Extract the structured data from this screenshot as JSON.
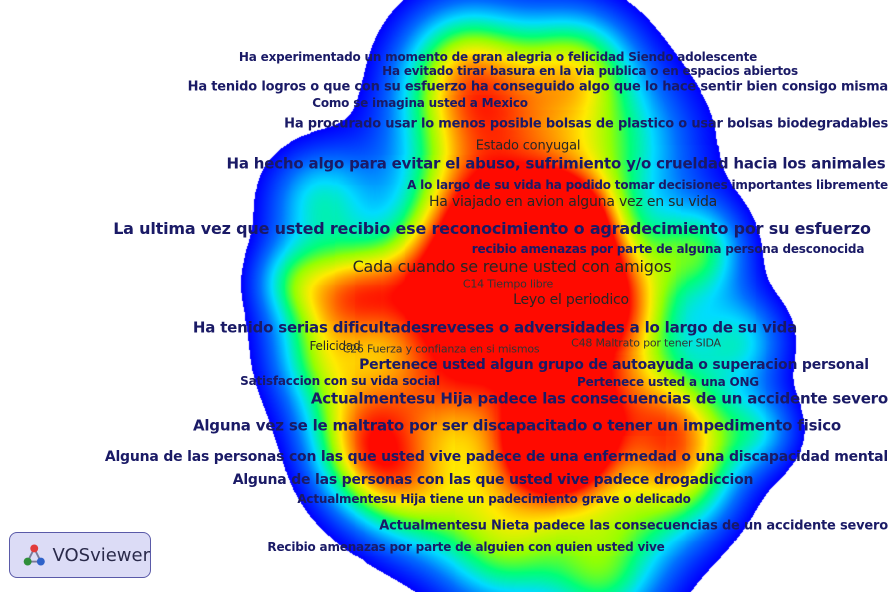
{
  "brand": {
    "label": "VOSviewer",
    "icon": "vosviewer-logo-icon"
  },
  "terms": [
    {
      "id": "t1",
      "text": "Ha experimentado un momento de gran alegria o felicidad Siendo adolescente",
      "weight": 0.35,
      "style": "dark"
    },
    {
      "id": "t2",
      "text": "Ha evitado tirar basura en la via publica o en espacios abiertos",
      "weight": 0.3,
      "style": "dark"
    },
    {
      "id": "t3",
      "text": "Ha tenido logros o que con su esfuerzo ha conseguido algo que lo hace sentir bien consigo misma",
      "weight": 0.4,
      "style": "dark"
    },
    {
      "id": "t4",
      "text": "Como se imagina usted a Mexico",
      "weight": 0.3,
      "style": "dark"
    },
    {
      "id": "t5",
      "text": "Ha procurado usar lo menos posible bolsas de plastico o usar bolsas biodegradables",
      "weight": 0.4,
      "style": "dark"
    },
    {
      "id": "t6",
      "text": "Estado conyugal",
      "weight": 0.45,
      "style": "mid"
    },
    {
      "id": "t7",
      "text": "Ha hecho algo para evitar el abuso, sufrimiento y/o crueldad hacia los animales",
      "weight": 0.65,
      "style": "dark"
    },
    {
      "id": "t8",
      "text": "A lo largo de su vida ha podido tomar decisiones importantes libremente",
      "weight": 0.35,
      "style": "dark"
    },
    {
      "id": "t9",
      "text": "Ha viajado en avion alguna vez en su vida",
      "weight": 0.6,
      "style": "mid"
    },
    {
      "id": "t10",
      "text": "La ultima vez que usted recibio ese reconocimiento o agradecimiento por su esfuerzo",
      "weight": 0.8,
      "style": "dark"
    },
    {
      "id": "t11",
      "text": "recibio amenazas por parte de alguna persona desconocida",
      "weight": 0.35,
      "style": "dark"
    },
    {
      "id": "t12",
      "text": "Cada cuando se reune usted con amigos",
      "weight": 0.75,
      "style": "mid"
    },
    {
      "id": "t13",
      "text": "C14 Tiempo libre",
      "weight": 0.2,
      "style": "small"
    },
    {
      "id": "t14",
      "text": "Leyo el periodico",
      "weight": 0.55,
      "style": "mid"
    },
    {
      "id": "t15",
      "text": "Ha tenido serias dificultadesreveses o adversidades a lo largo de su vida",
      "weight": 0.7,
      "style": "dark"
    },
    {
      "id": "t16",
      "text": "Felicidad",
      "weight": 0.3,
      "style": "mid"
    },
    {
      "id": "t17",
      "text": "C26 Fuerza y confianza en si mismos",
      "weight": 0.2,
      "style": "small"
    },
    {
      "id": "t18",
      "text": "C48 Maltrato por tener SIDA",
      "weight": 0.2,
      "style": "small"
    },
    {
      "id": "t19",
      "text": "Pertenece usted algun grupo de autoayuda o superacion personal",
      "weight": 0.55,
      "style": "dark"
    },
    {
      "id": "t20",
      "text": "Satisfaccion con su vida social",
      "weight": 0.3,
      "style": "dark"
    },
    {
      "id": "t21",
      "text": "Pertenece usted a una ONG",
      "weight": 0.3,
      "style": "dark"
    },
    {
      "id": "t22",
      "text": "Actualmentesu Hija padece las consecuencias de un accidente severo",
      "weight": 0.65,
      "style": "dark"
    },
    {
      "id": "t23",
      "text": "Alguna vez se le maltrato por ser discapacitado o tener un impedimento fisico",
      "weight": 0.7,
      "style": "dark"
    },
    {
      "id": "t24",
      "text": "Alguna de las personas con las que usted vive padece de una enfermedad o una discapacidad mental",
      "weight": 0.6,
      "style": "dark"
    },
    {
      "id": "t25",
      "text": "Alguna de las personas con las que usted vive padece drogadiccion",
      "weight": 0.5,
      "style": "dark"
    },
    {
      "id": "t26",
      "text": "Actualmentesu Hija tiene un padecimiento grave o delicado",
      "weight": 0.35,
      "style": "dark"
    },
    {
      "id": "t27",
      "text": "Actualmentesu Nieta padece las consecuencias de un accidente severo",
      "weight": 0.4,
      "style": "dark"
    },
    {
      "id": "t28",
      "text": "Recibio amenazas por parte de alguien con quien usted vive",
      "weight": 0.35,
      "style": "dark"
    }
  ]
}
